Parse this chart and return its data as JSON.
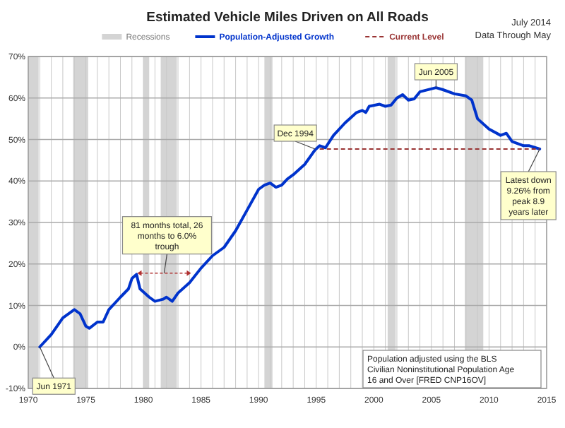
{
  "chart_data": {
    "type": "line",
    "title": "Estimated Vehicle Miles Driven on All Roads",
    "x": [
      1971,
      1972,
      1973,
      1974,
      1974.5,
      1975,
      1975.3,
      1976,
      1976.5,
      1977,
      1978,
      1978.7,
      1979,
      1979.4,
      1979.7,
      1980.5,
      1981,
      1981.7,
      1982,
      1982.5,
      1983,
      1984,
      1985,
      1986,
      1987,
      1988,
      1989,
      1990,
      1990.5,
      1991,
      1991.5,
      1992,
      1992.5,
      1993,
      1994,
      1994.9,
      1995.3,
      1995.8,
      1996.5,
      1997.5,
      1998.5,
      1999,
      1999.3,
      1999.6,
      2000.5,
      2001,
      2001.5,
      2002,
      2002.5,
      2003,
      2003.5,
      2004,
      2005.4,
      2006,
      2007,
      2008,
      2008.5,
      2009,
      2010,
      2011,
      2011.5,
      2012,
      2013,
      2013.5,
      2014.4
    ],
    "series": [
      {
        "name": "Population-Adjusted Growth",
        "color": "#0033cc",
        "values": [
          0,
          3,
          7,
          9,
          8,
          5,
          4.5,
          6,
          6,
          9,
          12,
          14,
          16.5,
          17.5,
          14,
          12,
          11,
          11.5,
          12,
          11,
          13,
          15.5,
          19,
          22,
          24,
          28,
          33,
          38,
          39,
          39.5,
          38.5,
          39,
          40.5,
          41.5,
          44,
          47.5,
          48.5,
          48,
          51,
          54,
          56.5,
          57,
          56.5,
          58,
          58.5,
          58,
          58.3,
          60,
          60.8,
          59.5,
          59.8,
          61.5,
          62.5,
          62,
          61,
          60.5,
          59.5,
          55,
          52.5,
          51,
          51.5,
          49.5,
          48.5,
          48.5,
          47.7
        ]
      }
    ],
    "xlim": [
      1970,
      2015
    ],
    "xticks": [
      1970,
      1975,
      1980,
      1985,
      1990,
      1995,
      2000,
      2005,
      2010,
      2015
    ],
    "ylim": [
      -10,
      70
    ],
    "yticks": [
      {
        "value": -10,
        "label": "-10%"
      },
      {
        "value": 0,
        "label": "0%"
      },
      {
        "value": 10,
        "label": "10%"
      },
      {
        "value": 20,
        "label": "20%"
      },
      {
        "value": 30,
        "label": "30%"
      },
      {
        "value": 40,
        "label": "40%"
      },
      {
        "value": 50,
        "label": "50%"
      },
      {
        "value": 60,
        "label": "60%"
      },
      {
        "value": 70,
        "label": "70%"
      }
    ],
    "grid": true,
    "legend": "top",
    "line_style": "solid",
    "ref_lines": [
      {
        "axis": "y",
        "value": 47.7,
        "label": "Current Level",
        "color": "#993333",
        "line_style": "dashed"
      }
    ],
    "bands": [
      {
        "axis": "x",
        "from": 1970,
        "to": 1970.9,
        "label": "Recessions",
        "color": "#d4d4d4"
      },
      {
        "axis": "x",
        "from": 1973.9,
        "to": 1975.2,
        "color": "#d4d4d4"
      },
      {
        "axis": "x",
        "from": 1980,
        "to": 1980.5,
        "color": "#d4d4d4"
      },
      {
        "axis": "x",
        "from": 1981.5,
        "to": 1982.9,
        "color": "#d4d4d4"
      },
      {
        "axis": "x",
        "from": 1990.5,
        "to": 1991.2,
        "color": "#d4d4d4"
      },
      {
        "axis": "x",
        "from": 2001.2,
        "to": 2001.9,
        "color": "#d4d4d4"
      },
      {
        "axis": "x",
        "from": 2007.9,
        "to": 2009.5,
        "color": "#d4d4d4"
      }
    ],
    "annotations": [
      "July 2014",
      "Data Through May",
      {
        "text": "Jun 1971",
        "x": 1971,
        "y": 0
      },
      {
        "text": "81 months total, 26 months to 6.0% trough",
        "x": 1981.8,
        "y": 17.8
      },
      {
        "text": "Dec 1994",
        "x": 1994.9,
        "y": 47.7
      },
      {
        "text": "Jun 2005",
        "x": 2005.4,
        "y": 62.5
      },
      {
        "text": "Latest down 9.26% from peak 8.9 years later",
        "x": 2014.4,
        "y": 47.7
      },
      "Population adjusted using the BLS Civilian Noninstitutional Population Age 16 and Over [FRED CNP16OV]"
    ]
  }
}
